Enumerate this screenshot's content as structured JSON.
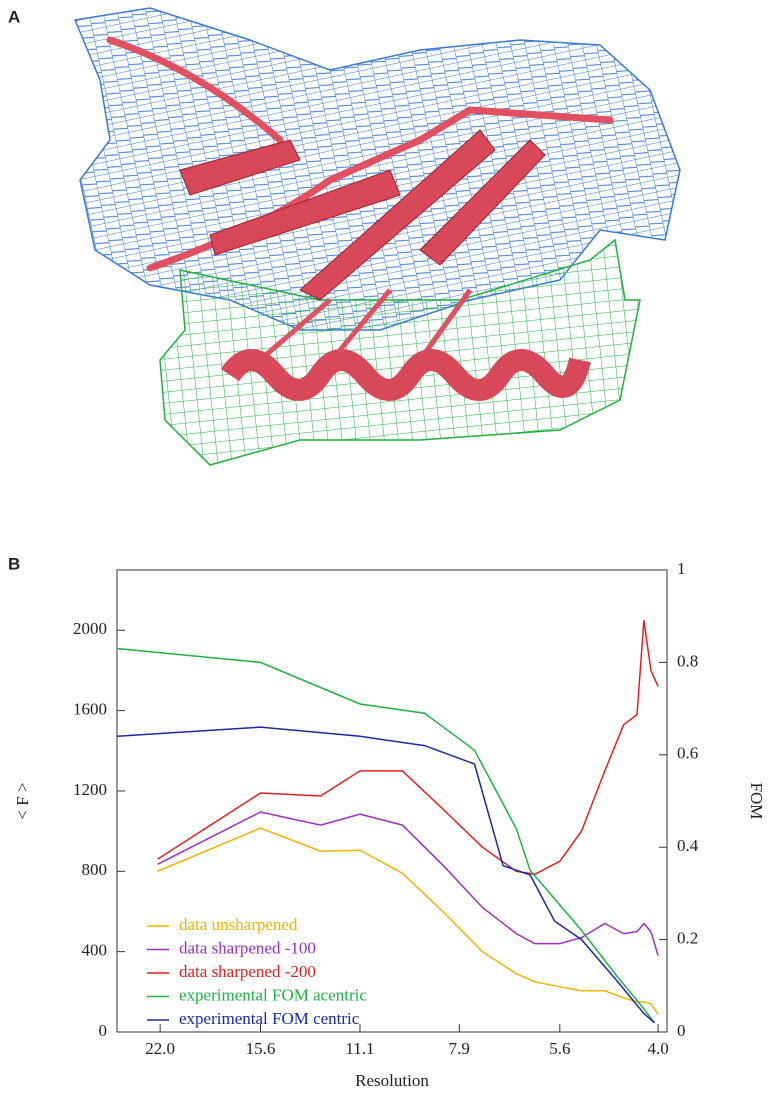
{
  "panel_labels": [
    "A",
    "B"
  ],
  "chart_data": {
    "type": "line",
    "xlabel": "Resolution",
    "ylabel": "< F >",
    "y2label": "FOM",
    "xscale": "log",
    "xlim": [
      25.5,
      3.88
    ],
    "xticks": [
      {
        "value": 22.0,
        "label": "22.0"
      },
      15.6,
      11.1,
      7.9,
      5.6,
      {
        "value": 4.0,
        "label": "4.0"
      }
    ],
    "ylim": [
      0,
      2300
    ],
    "yticks": [
      0,
      400,
      800,
      1200,
      1600,
      2000
    ],
    "y2lim": [
      0,
      1
    ],
    "y2ticks": [
      0,
      0.2,
      0.4,
      0.6,
      0.8,
      1
    ],
    "legend": "lower left",
    "series": [
      {
        "name": "data unsharpened",
        "color": "#f0b400",
        "x": [
          22.2,
          15.6,
          12.7,
          11.1,
          9.6,
          8.3,
          7.3,
          6.5,
          6.1,
          5.6,
          5.2,
          4.8,
          4.5,
          4.3,
          4.2,
          4.1,
          4.0
        ],
        "values": [
          800,
          1015,
          900,
          905,
          790,
          590,
          400,
          290,
          250,
          225,
          205,
          205,
          170,
          150,
          150,
          140,
          90
        ]
      },
      {
        "name": "data sharpened -100",
        "color": "#9b30c0",
        "x": [
          22.2,
          15.6,
          12.7,
          11.1,
          9.6,
          8.3,
          7.3,
          6.5,
          6.1,
          5.6,
          5.2,
          4.8,
          4.5,
          4.3,
          4.2,
          4.1,
          4.0
        ],
        "values": [
          835,
          1095,
          1030,
          1085,
          1030,
          820,
          620,
          490,
          440,
          440,
          470,
          540,
          490,
          500,
          540,
          500,
          380
        ]
      },
      {
        "name": "data sharpened -200",
        "color": "#e02020",
        "x": [
          22.2,
          15.6,
          12.7,
          11.1,
          9.6,
          8.3,
          7.3,
          6.5,
          6.1,
          5.6,
          5.2,
          4.8,
          4.5,
          4.3,
          4.2,
          4.1,
          4.0
        ],
        "values": [
          860,
          1190,
          1175,
          1300,
          1300,
          1100,
          920,
          800,
          785,
          850,
          1000,
          1300,
          1530,
          1580,
          2050,
          1800,
          1720
        ]
      },
      {
        "name": "experimental FOM acentric",
        "color": "#20b040",
        "axis": "y2",
        "x": [
          25.5,
          15.6,
          11.1,
          8.9,
          7.5,
          6.5,
          6.2,
          5.2,
          4.6,
          4.2,
          4.05
        ],
        "values": [
          0.83,
          0.8,
          0.71,
          0.69,
          0.61,
          0.44,
          0.35,
          0.22,
          0.12,
          0.05,
          0.02
        ]
      },
      {
        "name": "experimental FOM centric",
        "color": "#1a2aa0",
        "axis": "y2",
        "x": [
          25.5,
          15.6,
          11.1,
          8.9,
          7.5,
          6.8,
          6.2,
          5.7,
          5.2,
          4.6,
          4.2,
          4.05
        ],
        "values": [
          0.64,
          0.66,
          0.64,
          0.62,
          0.58,
          0.36,
          0.34,
          0.24,
          0.2,
          0.11,
          0.04,
          0.02
        ]
      }
    ]
  }
}
